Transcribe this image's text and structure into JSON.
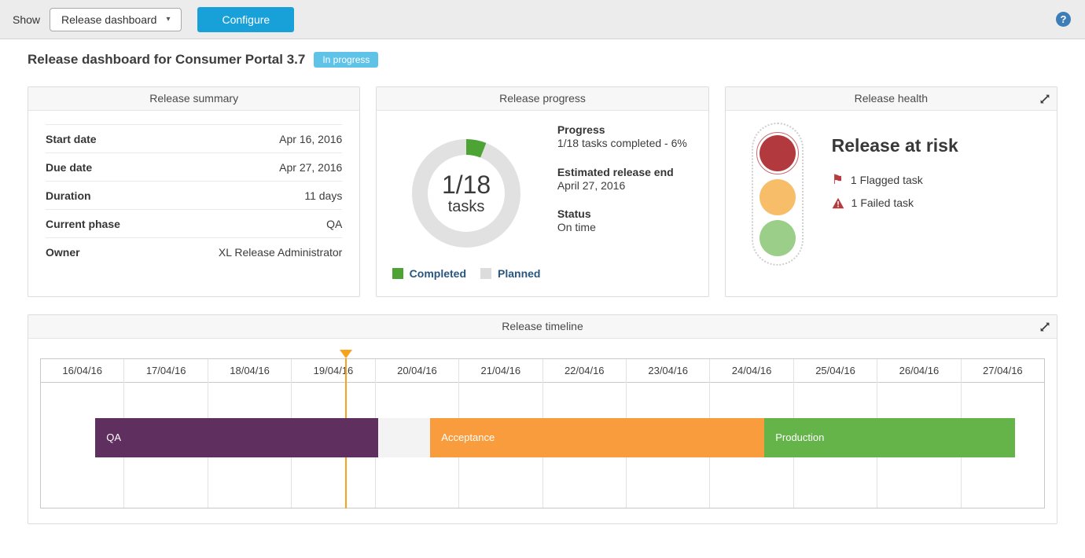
{
  "icons": {
    "help-icon": "?",
    "chevron-down-icon": "▾",
    "flag-icon": "⚑",
    "warning-icon": "triangle-exclamation",
    "expand-icon": "diagonal-resize-arrows",
    "traffic-light-icon": "three-circles"
  },
  "topbar": {
    "show_label": "Show",
    "view_selector_value": "Release dashboard",
    "configure_button": "Configure"
  },
  "page": {
    "title": "Release dashboard for Consumer Portal 3.7",
    "status_badge": "In progress",
    "badge_color": "#5fc3e7",
    "accent_color": "#18a0d9"
  },
  "summary_card": {
    "header": "Release summary",
    "rows": [
      {
        "label": "Start date",
        "value": "Apr 16, 2016"
      },
      {
        "label": "Due date",
        "value": "Apr 27, 2016"
      },
      {
        "label": "Duration",
        "value": "11 days"
      },
      {
        "label": "Current phase",
        "value": "QA"
      },
      {
        "label": "Owner",
        "value": "XL Release Administrator"
      }
    ]
  },
  "progress_card": {
    "header": "Release progress",
    "donut": {
      "center_value": "1/18",
      "center_label": "tasks",
      "completed_percent": 6,
      "completed_color": "#4ea335",
      "remaining_color": "#e1e1e1"
    },
    "legend": [
      {
        "label": "Completed",
        "color": "#4ea335"
      },
      {
        "label": "Planned",
        "color": "#dcdcdc"
      }
    ],
    "info": [
      {
        "label": "Progress",
        "value": "1/18 tasks completed - 6%"
      },
      {
        "label": "Estimated release end",
        "value": "April 27, 2016"
      },
      {
        "label": "Status",
        "value": "On time"
      }
    ]
  },
  "health_card": {
    "header": "Release health",
    "status_title": "Release at risk",
    "flagged_text": "1 Flagged task",
    "failed_text": "1 Failed task",
    "icon_color": "#b53a3e",
    "traffic_light": {
      "active": "red",
      "red": "#b23a3e",
      "amber": "#f7bd69",
      "green": "#9bce89"
    }
  },
  "timeline_card": {
    "header": "Release timeline",
    "total_days": 12,
    "dates": [
      "16/04/16",
      "17/04/16",
      "18/04/16",
      "19/04/16",
      "20/04/16",
      "21/04/16",
      "22/04/16",
      "23/04/16",
      "24/04/16",
      "25/04/16",
      "26/04/16",
      "27/04/16"
    ],
    "phases": [
      {
        "name": "QA",
        "start_day": 0.66,
        "end_day": 4.04,
        "color": "#5e2f5f"
      },
      {
        "name": "",
        "start_day": 4.04,
        "end_day": 4.66,
        "color": "#f3f3f3"
      },
      {
        "name": "Acceptance",
        "start_day": 4.66,
        "end_day": 8.65,
        "color": "#f89c3d"
      },
      {
        "name": "Production",
        "start_day": 8.65,
        "end_day": 11.64,
        "color": "#64b449"
      }
    ],
    "marker": {
      "day_position": 3.65,
      "color": "#f6a21c",
      "label": "current time"
    }
  },
  "chart_data": [
    {
      "type": "pie",
      "title": "Release progress",
      "labels": [
        "Completed",
        "Planned"
      ],
      "values": [
        1,
        17
      ],
      "center_text": "1/18 tasks",
      "legend_position": "bottom"
    },
    {
      "type": "gantt",
      "title": "Release timeline",
      "x": [
        "16/04/16",
        "17/04/16",
        "18/04/16",
        "19/04/16",
        "20/04/16",
        "21/04/16",
        "22/04/16",
        "23/04/16",
        "24/04/16",
        "25/04/16",
        "26/04/16",
        "27/04/16"
      ],
      "series": [
        {
          "name": "QA",
          "start_day": 0.66,
          "end_day": 4.04
        },
        {
          "name": "Acceptance",
          "start_day": 4.66,
          "end_day": 8.65
        },
        {
          "name": "Production",
          "start_day": 8.65,
          "end_day": 11.64
        }
      ],
      "now_marker_day": 3.65,
      "grid": true
    }
  ]
}
